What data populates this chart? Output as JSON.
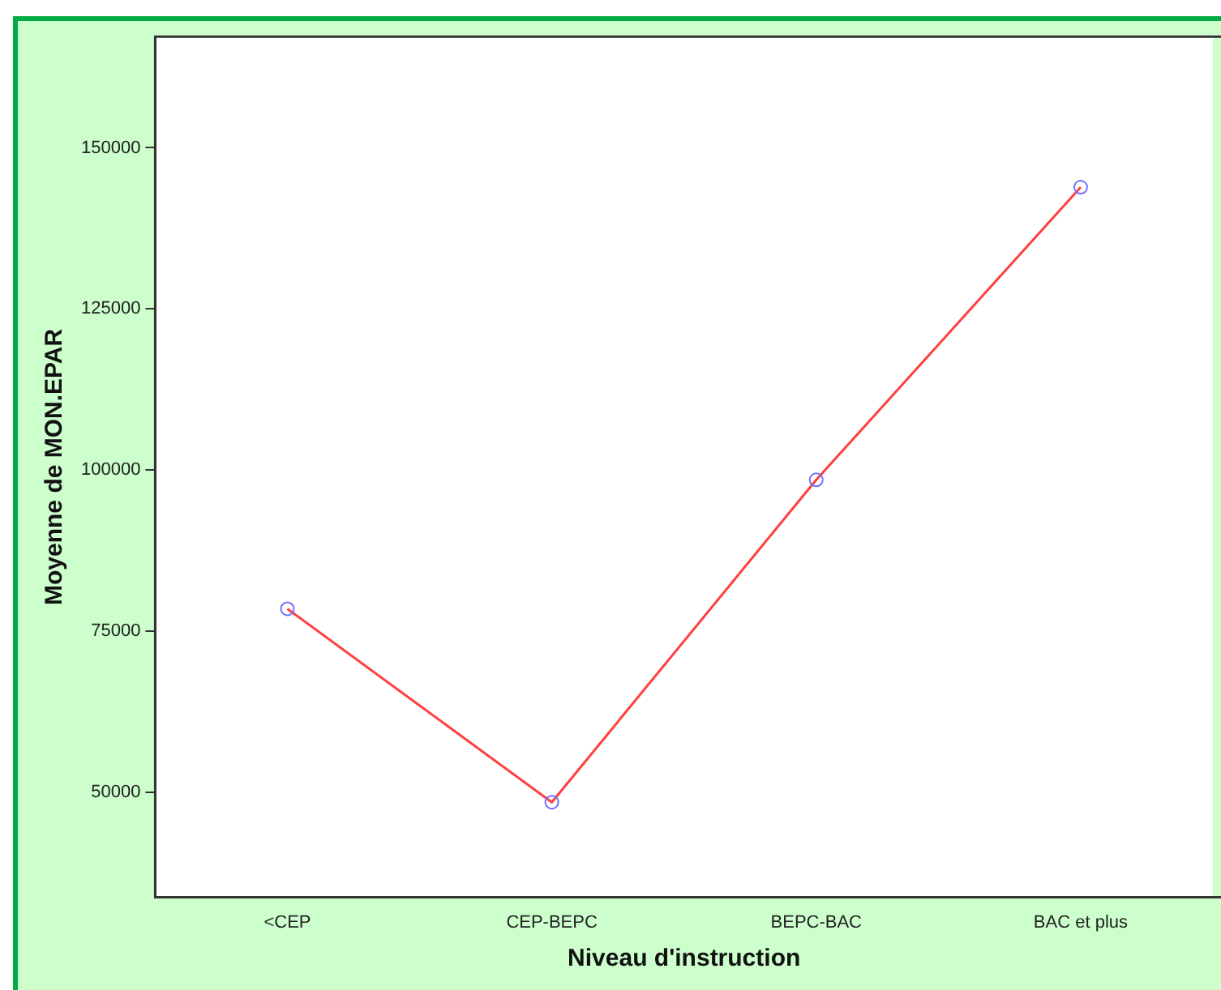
{
  "chart_data": {
    "type": "line",
    "xlabel": "Niveau d'instruction",
    "ylabel": "Moyenne de MON.EPAR",
    "categories": [
      "<CEP",
      "CEP-BEPC",
      "BEPC-BAC",
      "BAC et plus"
    ],
    "series": [
      {
        "color": "#ff4040",
        "values": [
          78500,
          48500,
          98500,
          143900
        ]
      }
    ],
    "ylim": [
      33750,
      167250
    ],
    "yticks": [
      50000,
      75000,
      100000,
      125000,
      150000
    ],
    "grid": false,
    "legend": false,
    "marker": "circle",
    "line_style": "solid"
  }
}
